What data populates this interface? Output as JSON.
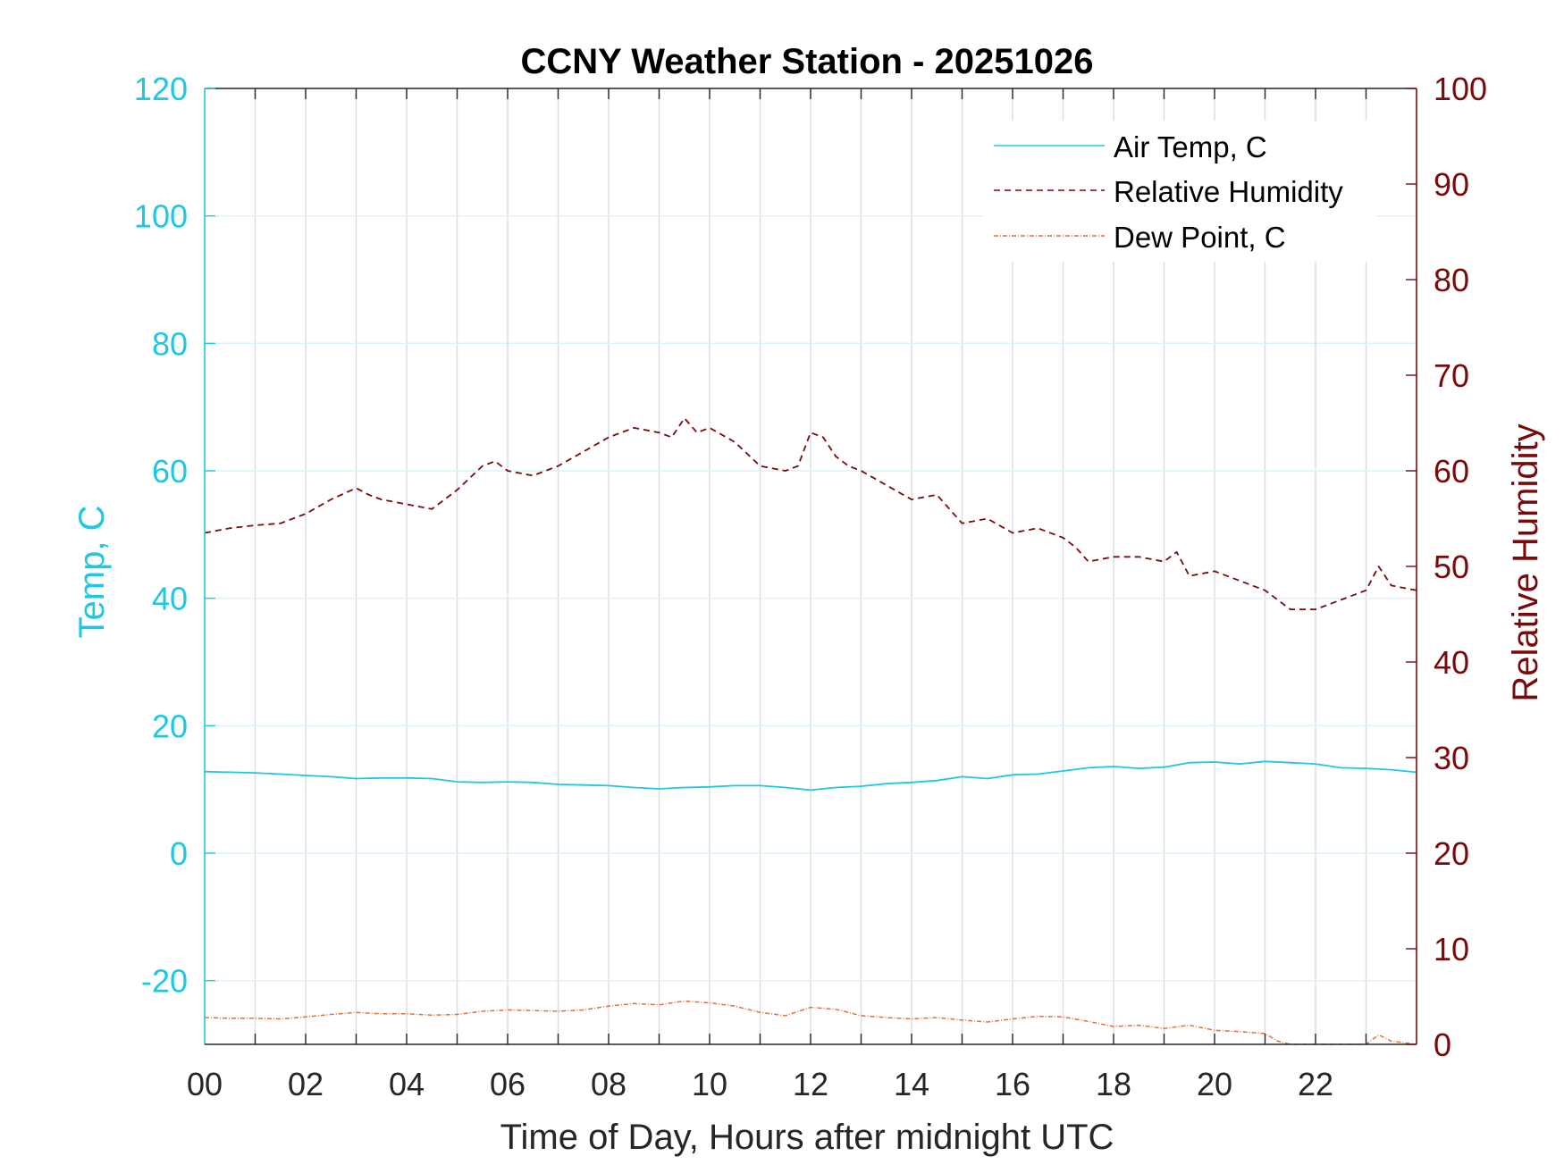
{
  "chart_data": {
    "type": "line",
    "title": "CCNY Weather Station - 20251026",
    "xlabel": "Time of Day, Hours after midnight UTC",
    "ylabel_left": "Temp, C",
    "ylabel_right": "Relative Humidity",
    "xlim": [
      0,
      24
    ],
    "ylim_left": [
      -30,
      120
    ],
    "ylim_right": [
      0,
      100
    ],
    "x_ticks": [
      0,
      2,
      4,
      6,
      8,
      10,
      12,
      14,
      16,
      18,
      20,
      22
    ],
    "x_tick_labels": [
      "00",
      "02",
      "04",
      "06",
      "08",
      "10",
      "12",
      "14",
      "16",
      "18",
      "20",
      "22"
    ],
    "y_left_ticks": [
      -20,
      0,
      20,
      40,
      60,
      80,
      100,
      120
    ],
    "y_left_tick_labels": [
      "-20",
      "0",
      "20",
      "40",
      "60",
      "80",
      "100",
      "120"
    ],
    "y_right_ticks": [
      0,
      10,
      20,
      30,
      40,
      50,
      60,
      70,
      80,
      90,
      100
    ],
    "y_right_tick_labels": [
      "0",
      "10",
      "20",
      "30",
      "40",
      "50",
      "60",
      "70",
      "80",
      "90",
      "100"
    ],
    "grid": true,
    "legend_position": "top-right",
    "colors": {
      "left_axis": "#1ec8e0",
      "right_axis": "#7a0a0a",
      "x_axis": "#262626",
      "air_temp": "#1ec8e0",
      "humidity": "#7a0a0a",
      "dew_point": "#e0703a",
      "grid_vertical": "#d5dde3",
      "grid_horizontal": "#d8f3f9"
    },
    "series": [
      {
        "name": "Air Temp, C",
        "axis": "left",
        "style": "solid",
        "x": [
          0,
          0.5,
          1,
          1.5,
          2,
          2.5,
          3,
          3.5,
          4,
          4.5,
          5,
          5.5,
          6,
          6.5,
          7,
          7.5,
          8,
          8.5,
          9,
          9.5,
          10,
          10.5,
          11,
          11.5,
          12,
          12.5,
          13,
          13.5,
          14,
          14.5,
          15,
          15.5,
          16,
          16.5,
          17,
          17.5,
          18,
          18.5,
          19,
          19.5,
          20,
          20.5,
          21,
          21.5,
          22,
          22.5,
          23,
          23.5,
          24
        ],
        "values": [
          12.8,
          12.7,
          12.6,
          12.4,
          12.2,
          12.0,
          11.7,
          11.8,
          11.8,
          11.7,
          11.2,
          11.1,
          11.2,
          11.1,
          10.8,
          10.7,
          10.6,
          10.3,
          10.1,
          10.3,
          10.4,
          10.6,
          10.6,
          10.3,
          9.9,
          10.3,
          10.5,
          10.9,
          11.1,
          11.4,
          12.0,
          11.7,
          12.3,
          12.4,
          12.9,
          13.4,
          13.6,
          13.3,
          13.5,
          14.2,
          14.3,
          14.0,
          14.4,
          14.2,
          14.0,
          13.4,
          13.3,
          13.1,
          12.7
        ]
      },
      {
        "name": "Relative Humidity",
        "axis": "right",
        "style": "dashed",
        "x": [
          0,
          0.5,
          1,
          1.5,
          2,
          2.5,
          3,
          3.25,
          3.5,
          4,
          4.5,
          5,
          5.5,
          5.75,
          6,
          6.5,
          7,
          7.5,
          8,
          8.5,
          9,
          9.25,
          9.5,
          9.75,
          10,
          10.5,
          11,
          11.5,
          11.75,
          12,
          12.25,
          12.5,
          12.75,
          13,
          13.5,
          14,
          14.5,
          14.75,
          15,
          15.5,
          16,
          16.5,
          17,
          17.25,
          17.5,
          18,
          18.5,
          19,
          19.25,
          19.5,
          20,
          20.5,
          21,
          21.5,
          22,
          22.5,
          23,
          23.25,
          23.5,
          24
        ],
        "values": [
          53.5,
          54.0,
          54.3,
          54.5,
          55.5,
          57.0,
          58.2,
          57.5,
          57.0,
          56.5,
          56.0,
          58.0,
          60.5,
          61.0,
          60.0,
          59.5,
          60.5,
          62.0,
          63.5,
          64.5,
          64.0,
          63.5,
          65.5,
          64.0,
          64.5,
          63.0,
          60.5,
          60.0,
          60.5,
          64.0,
          63.5,
          61.5,
          60.5,
          60.0,
          58.5,
          57.0,
          57.5,
          56.0,
          54.5,
          55.0,
          53.5,
          54.0,
          53.0,
          52.0,
          50.5,
          51.0,
          51.0,
          50.5,
          51.5,
          49.0,
          49.5,
          48.5,
          47.5,
          45.5,
          45.5,
          46.5,
          47.5,
          50.0,
          48.0,
          47.5
        ]
      },
      {
        "name": "Dew Point, C",
        "axis": "left",
        "style": "dashdot",
        "x": [
          0,
          0.5,
          1,
          1.5,
          2,
          2.5,
          3,
          3.5,
          4,
          4.5,
          5,
          5.5,
          6,
          6.5,
          7,
          7.5,
          8,
          8.5,
          9,
          9.5,
          10,
          10.5,
          11,
          11.5,
          12,
          12.5,
          13,
          13.5,
          14,
          14.5,
          15,
          15.5,
          16,
          16.5,
          17,
          17.5,
          18,
          18.5,
          19,
          19.5,
          20,
          20.5,
          21,
          21.25,
          21.5,
          22,
          22.5,
          23,
          23.25,
          23.5,
          24
        ],
        "values": [
          -25.8,
          -25.9,
          -25.9,
          -26.0,
          -25.7,
          -25.3,
          -25.0,
          -25.2,
          -25.2,
          -25.4,
          -25.3,
          -24.8,
          -24.6,
          -24.7,
          -24.8,
          -24.6,
          -24.0,
          -23.6,
          -23.8,
          -23.2,
          -23.5,
          -24.0,
          -25.0,
          -25.5,
          -24.2,
          -24.5,
          -25.5,
          -25.8,
          -26.0,
          -25.8,
          -26.2,
          -26.5,
          -26.0,
          -25.6,
          -25.7,
          -26.4,
          -27.2,
          -27.0,
          -27.5,
          -27.0,
          -27.8,
          -28.0,
          -28.3,
          -29.5,
          -30.0,
          -30.1,
          -30.2,
          -30.0,
          -28.5,
          -29.5,
          -30.0
        ]
      }
    ]
  }
}
